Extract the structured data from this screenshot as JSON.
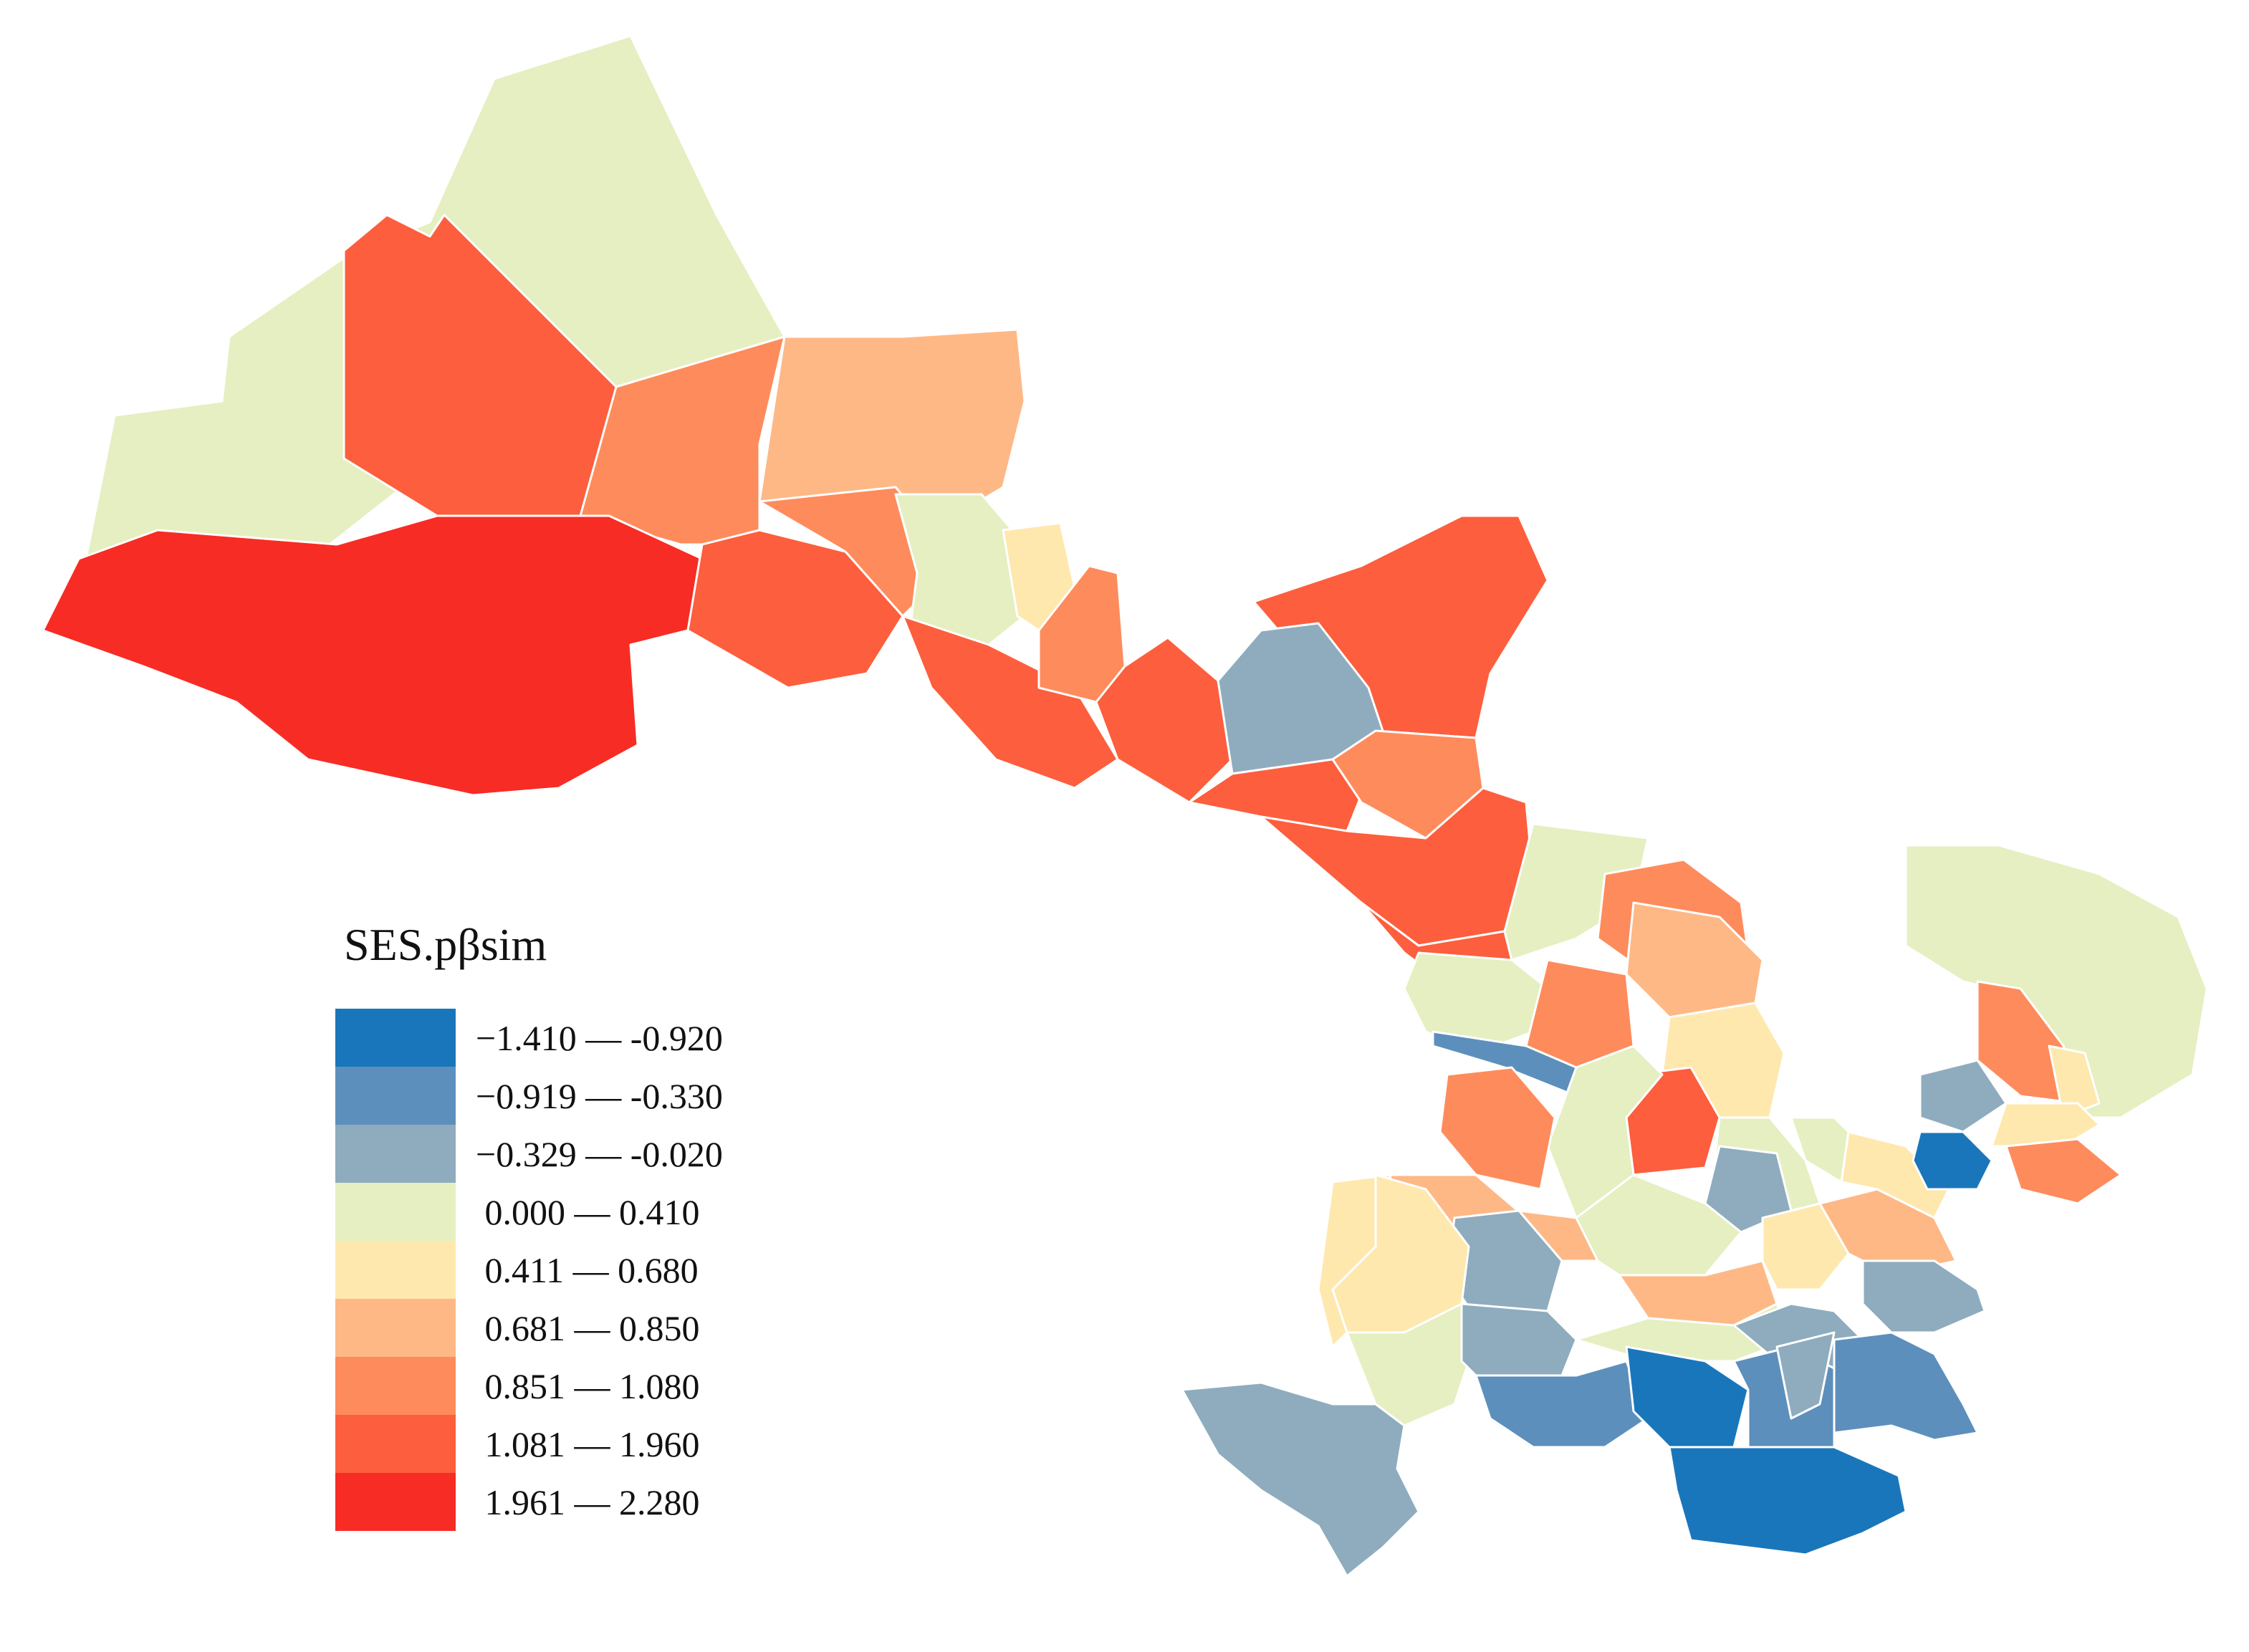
{
  "legend": {
    "title": "SES.pβsim",
    "classes": [
      {
        "label": "−1.410 — -0.920",
        "color": "#1a76bb"
      },
      {
        "label": "−0.919 — -0.330",
        "color": "#5d8fbc"
      },
      {
        "label": "−0.329 — -0.020",
        "color": "#8eacbe"
      },
      {
        "label": " 0.000 — 0.410",
        "color": "#e5efc1"
      },
      {
        "label": " 0.411 — 0.680",
        "color": "#fee8ae"
      },
      {
        "label": " 0.681 — 0.850",
        "color": "#feb886"
      },
      {
        "label": " 0.851 — 1.080",
        "color": "#fe8b5c"
      },
      {
        "label": " 1.081 — 1.960",
        "color": "#fd5e3d"
      },
      {
        "label": " 1.961 — 2.280",
        "color": "#f72c24"
      }
    ]
  }
}
